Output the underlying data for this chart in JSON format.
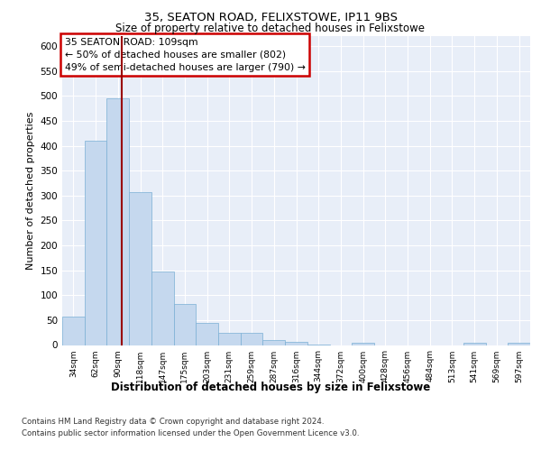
{
  "title1": "35, SEATON ROAD, FELIXSTOWE, IP11 9BS",
  "title2": "Size of property relative to detached houses in Felixstowe",
  "xlabel": "Distribution of detached houses by size in Felixstowe",
  "ylabel": "Number of detached properties",
  "bins": [
    "34sqm",
    "62sqm",
    "90sqm",
    "118sqm",
    "147sqm",
    "175sqm",
    "203sqm",
    "231sqm",
    "259sqm",
    "287sqm",
    "316sqm",
    "344sqm",
    "372sqm",
    "400sqm",
    "428sqm",
    "456sqm",
    "484sqm",
    "513sqm",
    "541sqm",
    "569sqm",
    "597sqm"
  ],
  "bar_values": [
    57,
    410,
    495,
    307,
    148,
    82,
    44,
    24,
    24,
    10,
    7,
    1,
    0,
    5,
    0,
    0,
    0,
    0,
    5,
    0,
    5
  ],
  "bar_color": "#c5d8ee",
  "bar_edge_color": "#7aafd4",
  "vline_color": "#990000",
  "annotation_box_text": "35 SEATON ROAD: 109sqm\n← 50% of detached houses are smaller (802)\n49% of semi-detached houses are larger (790) →",
  "annotation_box_color": "#ffffff",
  "annotation_box_edge_color": "#cc0000",
  "ylim": [
    0,
    620
  ],
  "yticks": [
    0,
    50,
    100,
    150,
    200,
    250,
    300,
    350,
    400,
    450,
    500,
    550,
    600
  ],
  "footer1": "Contains HM Land Registry data © Crown copyright and database right 2024.",
  "footer2": "Contains public sector information licensed under the Open Government Licence v3.0.",
  "bg_color": "#ffffff",
  "plot_bg_color": "#e8eef8"
}
